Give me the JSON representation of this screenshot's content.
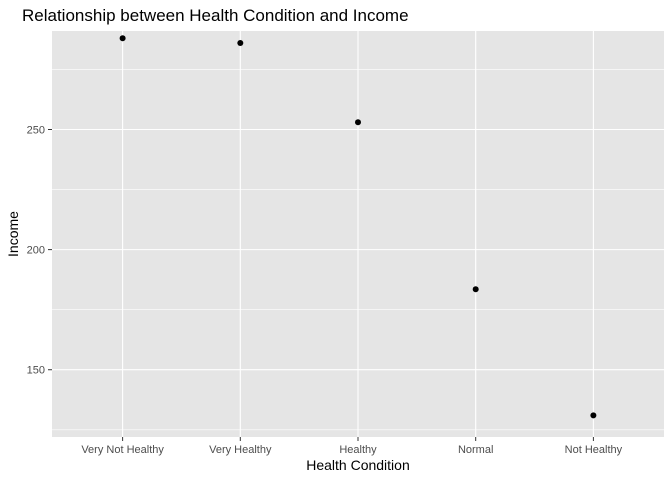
{
  "chart_data": {
    "type": "scatter",
    "title": "Relationship between Health Condition and Income",
    "xlabel": "Health Condition",
    "ylabel": "Income",
    "categories": [
      "Very Not Healthy",
      "Very Healthy",
      "Healthy",
      "Normal",
      "Not Healthy"
    ],
    "values": [
      288,
      286,
      253,
      183.5,
      131
    ],
    "ylim": [
      122,
      291
    ],
    "yticks": [
      150,
      200,
      250
    ],
    "ytick_labels": [
      "150",
      "200",
      "250"
    ],
    "grid": true,
    "panel_color": "#e5e5e5",
    "grid_color": "#ffffff",
    "point_color": "#000000"
  }
}
